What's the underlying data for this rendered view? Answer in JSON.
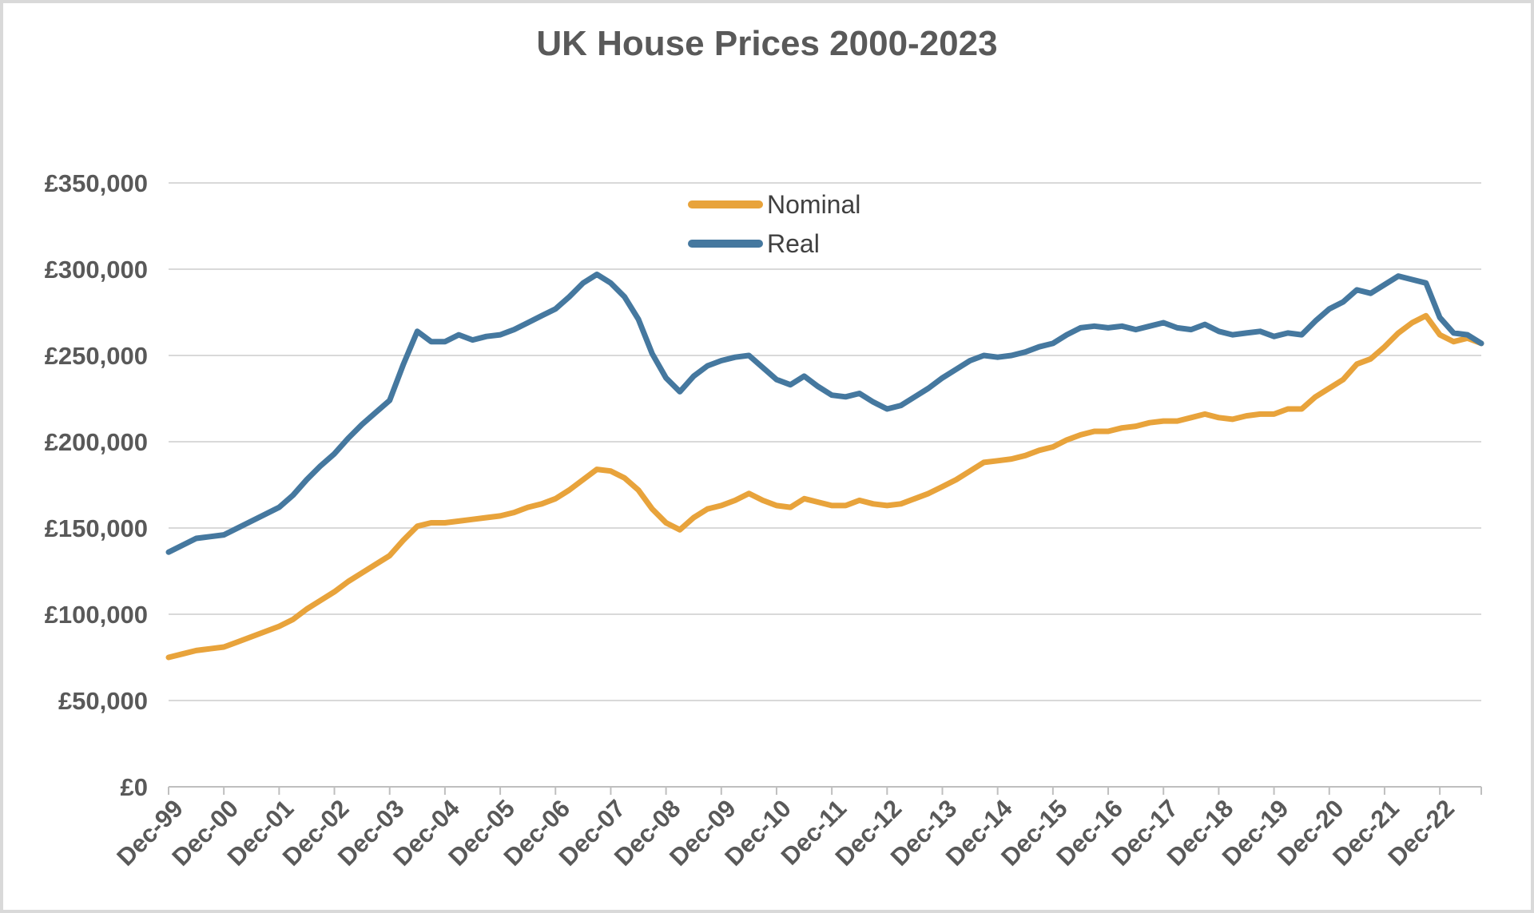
{
  "chart_data": {
    "type": "line",
    "title": "UK House Prices 2000-2023",
    "legend": {
      "position": "top-center",
      "items": [
        "Nominal",
        "Real"
      ]
    },
    "y_axis": {
      "min": 0,
      "max": 350000,
      "currency": "£",
      "tick_values": [
        0,
        50000,
        100000,
        150000,
        200000,
        250000,
        300000,
        350000
      ],
      "tick_labels": [
        "£0",
        "£50,000",
        "£100,000",
        "£150,000",
        "£200,000",
        "£250,000",
        "£300,000",
        "£350,000"
      ],
      "grid": true
    },
    "x_axis": {
      "unit": "months since Dec-1999, monthly series sampled quarterly",
      "months_total": 285,
      "tick_month_positions": [
        0,
        12,
        24,
        36,
        48,
        60,
        72,
        84,
        96,
        108,
        120,
        132,
        144,
        156,
        168,
        180,
        192,
        204,
        216,
        228,
        240,
        252,
        264,
        276
      ],
      "tick_labels": [
        "Dec-99",
        "Dec-00",
        "Dec-01",
        "Dec-02",
        "Dec-03",
        "Dec-04",
        "Dec-05",
        "Dec-06",
        "Dec-07",
        "Dec-08",
        "Dec-09",
        "Dec-10",
        "Dec-11",
        "Dec-12",
        "Dec-13",
        "Dec-14",
        "Dec-15",
        "Dec-16",
        "Dec-17",
        "Dec-18",
        "Dec-19",
        "Dec-20",
        "Dec-21",
        "Dec-22"
      ]
    },
    "x": [
      0,
      3,
      6,
      9,
      12,
      15,
      18,
      21,
      24,
      27,
      30,
      33,
      36,
      39,
      42,
      45,
      48,
      51,
      54,
      57,
      60,
      63,
      66,
      69,
      72,
      75,
      78,
      81,
      84,
      87,
      90,
      93,
      96,
      99,
      102,
      105,
      108,
      111,
      114,
      117,
      120,
      123,
      126,
      129,
      132,
      135,
      138,
      141,
      144,
      147,
      150,
      153,
      156,
      159,
      162,
      165,
      168,
      171,
      174,
      177,
      180,
      183,
      186,
      189,
      192,
      195,
      198,
      201,
      204,
      207,
      210,
      213,
      216,
      219,
      222,
      225,
      228,
      231,
      234,
      237,
      240,
      243,
      246,
      249,
      252,
      255,
      258,
      261,
      264,
      267,
      270,
      273,
      276,
      279,
      282,
      285
    ],
    "series": [
      {
        "name": "Nominal",
        "color": "#E8A33B",
        "values": [
          75000,
          77000,
          79000,
          80000,
          81000,
          84000,
          87000,
          90000,
          93000,
          97000,
          103000,
          108000,
          113000,
          119000,
          124000,
          129000,
          134000,
          143000,
          151000,
          153000,
          153000,
          154000,
          155000,
          156000,
          157000,
          159000,
          162000,
          164000,
          167000,
          172000,
          178000,
          184000,
          183000,
          179000,
          172000,
          161000,
          153000,
          149000,
          156000,
          161000,
          163000,
          166000,
          170000,
          166000,
          163000,
          162000,
          167000,
          165000,
          163000,
          163000,
          166000,
          164000,
          163000,
          164000,
          167000,
          170000,
          174000,
          178000,
          183000,
          188000,
          189000,
          190000,
          192000,
          195000,
          197000,
          201000,
          204000,
          206000,
          206000,
          208000,
          209000,
          211000,
          212000,
          212000,
          214000,
          216000,
          214000,
          213000,
          215000,
          216000,
          216000,
          219000,
          219000,
          226000,
          231000,
          236000,
          245000,
          248000,
          255000,
          263000,
          269000,
          273000,
          262000,
          258000,
          260000,
          257000
        ]
      },
      {
        "name": "Real",
        "color": "#45789F",
        "values": [
          136000,
          140000,
          144000,
          145000,
          146000,
          150000,
          154000,
          158000,
          162000,
          169000,
          178000,
          186000,
          193000,
          202000,
          210000,
          217000,
          224000,
          245000,
          264000,
          258000,
          258000,
          262000,
          259000,
          261000,
          262000,
          265000,
          269000,
          273000,
          277000,
          284000,
          292000,
          297000,
          292000,
          284000,
          271000,
          251000,
          237000,
          229000,
          238000,
          244000,
          247000,
          249000,
          250000,
          243000,
          236000,
          233000,
          238000,
          232000,
          227000,
          226000,
          228000,
          223000,
          219000,
          221000,
          226000,
          231000,
          237000,
          242000,
          247000,
          250000,
          249000,
          250000,
          252000,
          255000,
          257000,
          262000,
          266000,
          267000,
          266000,
          267000,
          265000,
          267000,
          269000,
          266000,
          265000,
          268000,
          264000,
          262000,
          263000,
          264000,
          261000,
          263000,
          262000,
          270000,
          277000,
          281000,
          288000,
          286000,
          291000,
          296000,
          294000,
          292000,
          272000,
          263000,
          262000,
          257000
        ]
      }
    ],
    "styles": {
      "gridline_color": "#D9D9D9",
      "axis_color": "#BFBFBF",
      "axis_text_color": "#595959",
      "legend_text_color": "#404040",
      "title_color": "#595959",
      "frame_border_color": "#D9D9D9",
      "background": "#FFFFFF"
    }
  }
}
